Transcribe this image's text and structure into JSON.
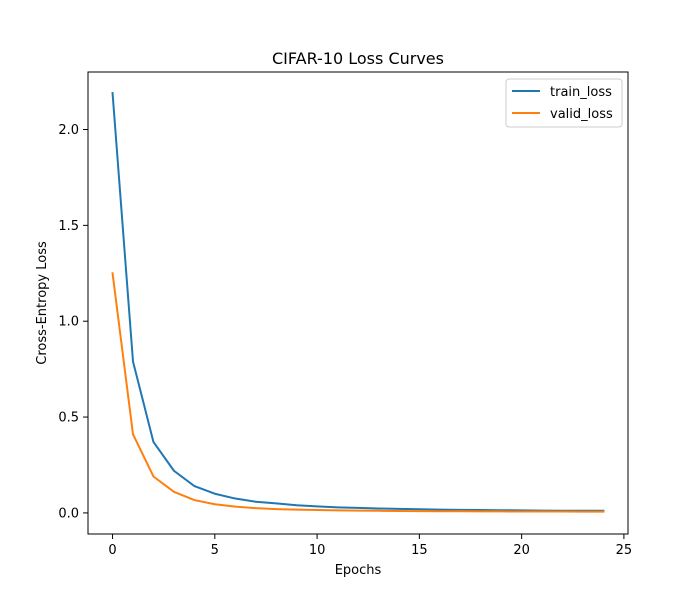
{
  "chart_data": {
    "type": "line",
    "title": "CIFAR-10 Loss Curves",
    "xlabel": "Epochs",
    "ylabel": "Cross-Entropy Loss",
    "xlim": [
      -1.2,
      25.2
    ],
    "ylim": [
      -0.11,
      2.3
    ],
    "xticks": [
      0,
      5,
      10,
      15,
      20,
      25
    ],
    "xtick_labels": [
      "0",
      "5",
      "10",
      "15",
      "20",
      "25"
    ],
    "yticks": [
      0.0,
      0.5,
      1.0,
      1.5,
      2.0
    ],
    "ytick_labels": [
      "0.0",
      "0.5",
      "1.0",
      "1.5",
      "2.0"
    ],
    "grid": false,
    "legend_position": "top-right",
    "x": [
      0,
      1,
      2,
      3,
      4,
      5,
      6,
      7,
      8,
      9,
      10,
      11,
      12,
      13,
      14,
      15,
      16,
      17,
      18,
      19,
      20,
      21,
      22,
      23,
      24
    ],
    "series": [
      {
        "name": "train_loss",
        "color": "#1f77b4",
        "values": [
          2.19,
          0.79,
          0.37,
          0.22,
          0.14,
          0.1,
          0.075,
          0.058,
          0.05,
          0.04,
          0.034,
          0.029,
          0.026,
          0.023,
          0.021,
          0.019,
          0.017,
          0.016,
          0.015,
          0.014,
          0.013,
          0.012,
          0.0115,
          0.011,
          0.011
        ]
      },
      {
        "name": "valid_loss",
        "color": "#ff7f0e",
        "values": [
          1.25,
          0.41,
          0.19,
          0.11,
          0.067,
          0.045,
          0.033,
          0.025,
          0.02,
          0.017,
          0.015,
          0.013,
          0.012,
          0.011,
          0.01,
          0.0095,
          0.009,
          0.0085,
          0.008,
          0.0078,
          0.0075,
          0.0073,
          0.0071,
          0.007,
          0.007
        ]
      }
    ]
  }
}
